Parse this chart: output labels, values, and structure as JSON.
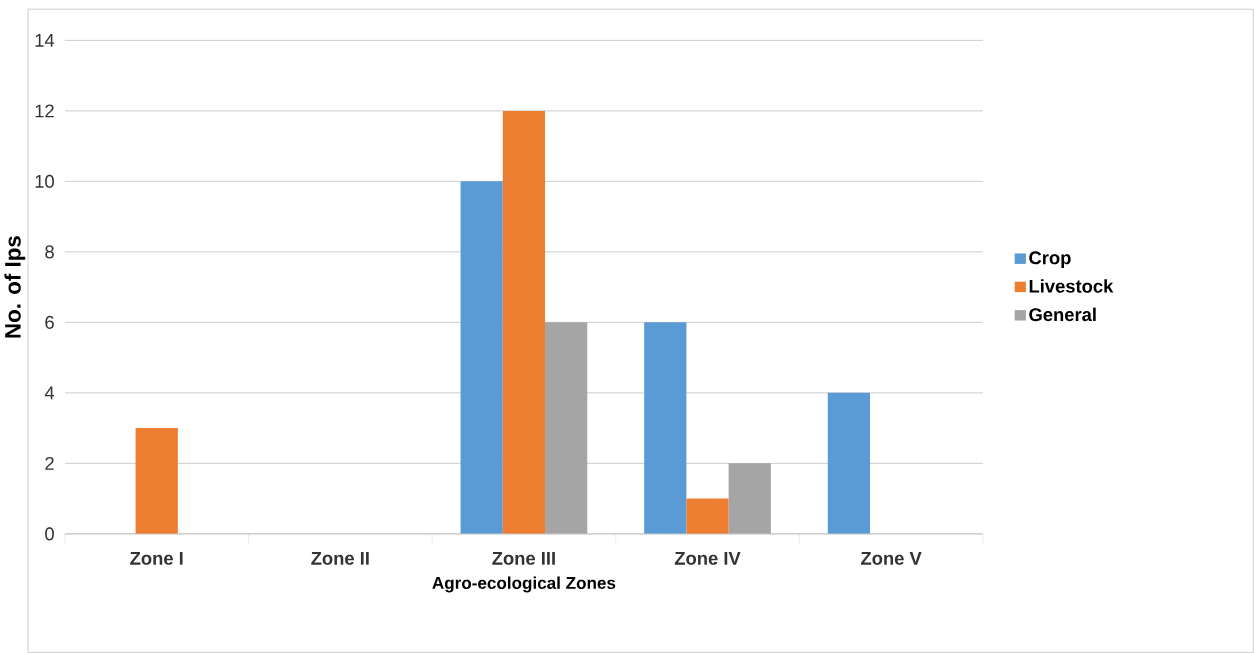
{
  "chart_data": {
    "type": "bar",
    "xlabel": "Agro-ecological Zones",
    "ylabel": "No. of Ips",
    "categories": [
      "Zone I",
      "Zone II",
      "Zone III",
      "Zone IV",
      "Zone V"
    ],
    "series": [
      {
        "name": "Crop",
        "color": "#5b9bd5",
        "values": [
          0,
          0,
          10,
          6,
          4
        ]
      },
      {
        "name": "Livestock",
        "color": "#ed7d31",
        "values": [
          3,
          0,
          12,
          1,
          0
        ]
      },
      {
        "name": "General",
        "color": "#a5a5a5",
        "values": [
          0,
          0,
          6,
          2,
          0
        ]
      }
    ],
    "ylim": [
      0,
      14
    ],
    "yticks": [
      0,
      2,
      4,
      6,
      8,
      10,
      12,
      14
    ],
    "grid": "y",
    "legend": "right"
  }
}
